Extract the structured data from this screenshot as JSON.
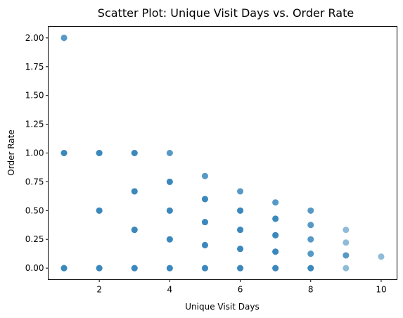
{
  "chart_data": {
    "type": "scatter",
    "title": "Scatter Plot: Unique Visit Days vs. Order Rate",
    "xlabel": "Unique Visit Days",
    "ylabel": "Order Rate",
    "xlim": [
      0.55,
      10.45
    ],
    "ylim": [
      -0.1,
      2.1
    ],
    "xticks": [
      2,
      4,
      6,
      8,
      10
    ],
    "yticks": [
      0.0,
      0.25,
      0.5,
      0.75,
      1.0,
      1.25,
      1.5,
      1.75,
      2.0
    ],
    "xtick_labels": [
      "2",
      "4",
      "6",
      "8",
      "10"
    ],
    "ytick_labels": [
      "0.00",
      "0.25",
      "0.50",
      "0.75",
      "1.00",
      "1.25",
      "1.50",
      "1.75",
      "2.00"
    ],
    "grid": false,
    "marker_color": "#1f77b4",
    "marker_alpha": 0.5,
    "series": [
      {
        "points": [
          [
            1,
            0.0
          ],
          [
            1,
            1.0
          ],
          [
            1,
            2.0
          ],
          [
            2,
            0.0
          ],
          [
            2,
            0.5
          ],
          [
            2,
            1.0
          ],
          [
            3,
            0.0
          ],
          [
            3,
            0.333
          ],
          [
            3,
            0.667
          ],
          [
            3,
            1.0
          ],
          [
            4,
            0.0
          ],
          [
            4,
            0.25
          ],
          [
            4,
            0.5
          ],
          [
            4,
            0.75
          ],
          [
            4,
            1.0
          ],
          [
            5,
            0.0
          ],
          [
            5,
            0.2
          ],
          [
            5,
            0.4
          ],
          [
            5,
            0.6
          ],
          [
            5,
            0.8
          ],
          [
            6,
            0.0
          ],
          [
            6,
            0.167
          ],
          [
            6,
            0.333
          ],
          [
            6,
            0.5
          ],
          [
            6,
            0.667
          ],
          [
            7,
            0.0
          ],
          [
            7,
            0.143
          ],
          [
            7,
            0.286
          ],
          [
            7,
            0.429
          ],
          [
            7,
            0.571
          ],
          [
            8,
            0.0
          ],
          [
            8,
            0.125
          ],
          [
            8,
            0.25
          ],
          [
            8,
            0.375
          ],
          [
            8,
            0.5
          ],
          [
            9,
            0.0
          ],
          [
            9,
            0.111
          ],
          [
            9,
            0.222
          ],
          [
            9,
            0.333
          ],
          [
            10,
            0.1
          ]
        ],
        "density": [
          3,
          3,
          2,
          3,
          3,
          3,
          3,
          3,
          3,
          3,
          3,
          3,
          3,
          3,
          2,
          3,
          3,
          3,
          3,
          2,
          3,
          3,
          3,
          3,
          2,
          3,
          3,
          3,
          3,
          2,
          3,
          2,
          2,
          2,
          2,
          1,
          2,
          1,
          1,
          1
        ]
      }
    ]
  }
}
